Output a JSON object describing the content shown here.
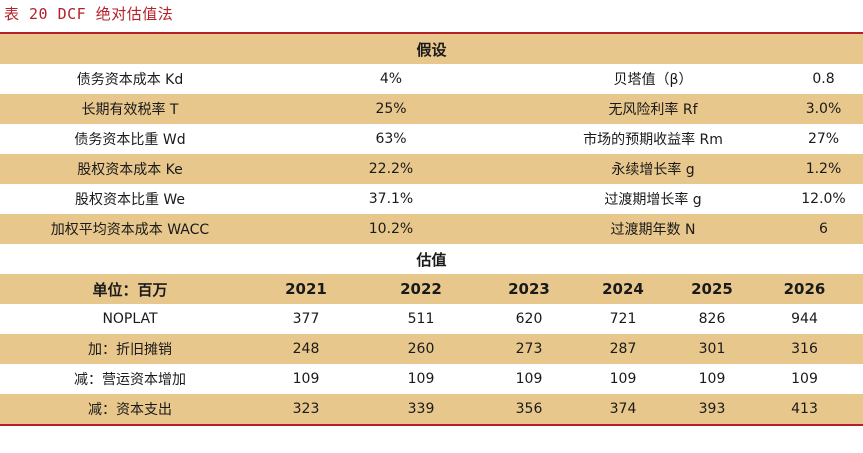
{
  "title": "表 20  DCF 绝对估值法",
  "assumptions": {
    "heading": "假设",
    "rows": [
      {
        "label1": "债务资本成本 Kd",
        "value1": "4%",
        "label2": "贝塔值（β）",
        "value2": "0.8"
      },
      {
        "label1": "长期有效税率 T",
        "value1": "25%",
        "label2": "无风险利率 Rf",
        "value2": "3.0%"
      },
      {
        "label1": "债务资本比重 Wd",
        "value1": "63%",
        "label2": "市场的预期收益率 Rm",
        "value2": "27%"
      },
      {
        "label1": "股权资本成本 Ke",
        "value1": "22.2%",
        "label2": "永续增长率 g",
        "value2": "1.2%"
      },
      {
        "label1": "股权资本比重 We",
        "value1": "37.1%",
        "label2": "过渡期增长率 g",
        "value2": "12.0%"
      },
      {
        "label1": "加权平均资本成本 WACC",
        "value1": "10.2%",
        "label2": "过渡期年数 N",
        "value2": "6"
      }
    ]
  },
  "valuation": {
    "heading": "估值",
    "header": [
      "单位：百万",
      "2021",
      "2022",
      "2023",
      "2024",
      "2025",
      "2026"
    ],
    "rows": [
      [
        "NOPLAT",
        "377",
        "511",
        "620",
        "721",
        "826",
        "944"
      ],
      [
        "加：折旧摊销",
        "248",
        "260",
        "273",
        "287",
        "301",
        "316"
      ],
      [
        "减：营运资本增加",
        "109",
        "109",
        "109",
        "109",
        "109",
        "109"
      ],
      [
        "减：资本支出",
        "323",
        "339",
        "356",
        "374",
        "393",
        "413"
      ]
    ]
  }
}
